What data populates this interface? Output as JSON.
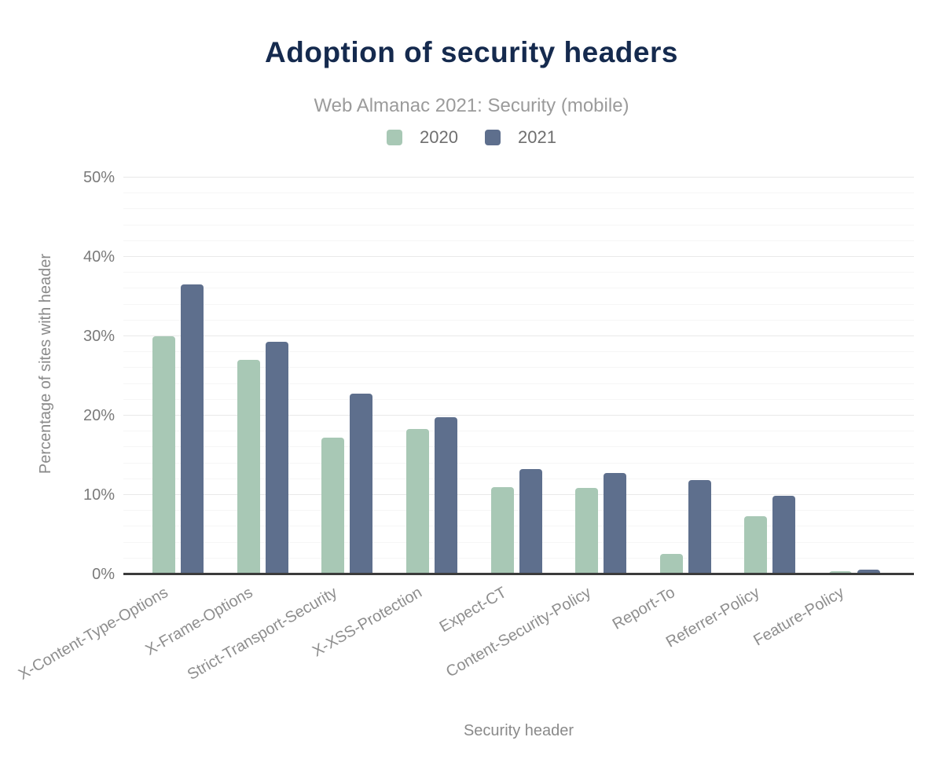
{
  "title": "Adoption of security headers",
  "subtitle": "Web Almanac 2021: Security (mobile)",
  "legend": [
    {
      "label": "2020",
      "color": "#a8c8b5"
    },
    {
      "label": "2021",
      "color": "#5e6f8d"
    }
  ],
  "colors": {
    "title_text": "#152a4e",
    "subtitle_text": "#9b9b9b",
    "axis_title_text": "#8a8a8a",
    "tick_text": "#7a7a7a",
    "bar_2020": "#a8c8b5",
    "bar_2021": "#5e6f8d",
    "axis_line": "#3b3b3b",
    "grid_major": "#e9e9e9",
    "grid_minor": "#f6f6f6"
  },
  "chart_data": {
    "type": "bar",
    "categories": [
      "X-Content-Type-Options",
      "X-Frame-Options",
      "Strict-Transport-Security",
      "X-XSS-Protection",
      "Expect-CT",
      "Content-Security-Policy",
      "Report-To",
      "Referrer-Policy",
      "Feature-Policy"
    ],
    "series": [
      {
        "name": "2020",
        "color": "#a8c8b5",
        "values": [
          30.0,
          27.0,
          17.2,
          18.3,
          11.0,
          10.9,
          2.6,
          7.3,
          0.4
        ]
      },
      {
        "name": "2021",
        "color": "#5e6f8d",
        "values": [
          36.5,
          29.3,
          22.8,
          19.8,
          13.3,
          12.8,
          11.9,
          9.9,
          0.6
        ]
      }
    ],
    "xlabel": "Security header",
    "ylabel": "Percentage of sites with header",
    "ylim": [
      0,
      50
    ],
    "ytick_labels": [
      "0%",
      "10%",
      "20%",
      "30%",
      "40%",
      "50%"
    ],
    "ytick_step_major": 10,
    "ytick_step_minor": 2,
    "grid": true,
    "legend_position": "top",
    "category_label_rotation_deg": -30
  }
}
